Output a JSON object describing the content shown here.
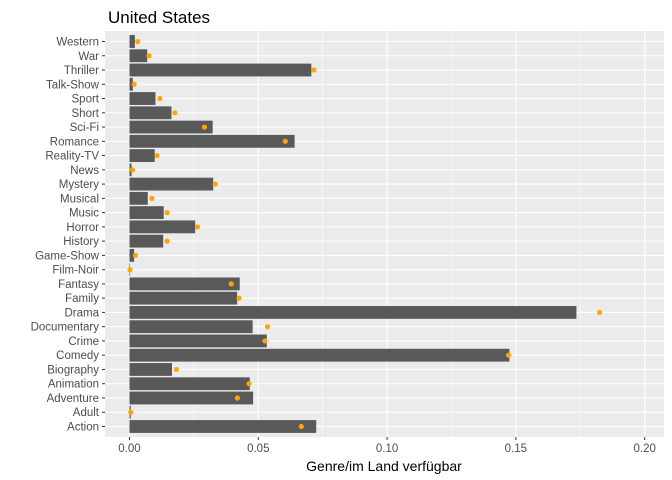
{
  "chart_data": {
    "type": "bar",
    "orientation": "horizontal",
    "title": "United States",
    "xlabel": "Genre/im Land verfügbar",
    "ylabel": "",
    "xlim": [
      -0.0095,
      0.2075
    ],
    "x_ticks": [
      0.0,
      0.05,
      0.1,
      0.15,
      0.2
    ],
    "x_tick_labels": [
      "0.00",
      "0.05",
      "0.10",
      "0.15",
      "0.20"
    ],
    "grid": true,
    "legend": "none",
    "categories": [
      "Action",
      "Adult",
      "Adventure",
      "Animation",
      "Biography",
      "Comedy",
      "Crime",
      "Documentary",
      "Drama",
      "Family",
      "Fantasy",
      "Film-Noir",
      "Game-Show",
      "History",
      "Horror",
      "Music",
      "Musical",
      "Mystery",
      "News",
      "Reality-TV",
      "Romance",
      "Sci-Fi",
      "Short",
      "Sport",
      "Talk-Show",
      "Thriller",
      "War",
      "Western"
    ],
    "series": [
      {
        "mark": "bar",
        "values": [
          0.0725,
          0.0005,
          0.048,
          0.0467,
          0.0165,
          0.1475,
          0.0533,
          0.0478,
          0.1735,
          0.0418,
          0.0428,
          0.0,
          0.0018,
          0.0131,
          0.0255,
          0.0133,
          0.0071,
          0.0325,
          0.0008,
          0.0098,
          0.0641,
          0.0323,
          0.0163,
          0.0101,
          0.0013,
          0.0706,
          0.0069,
          0.0021
        ],
        "color": "#595959"
      },
      {
        "mark": "point",
        "values": [
          0.0667,
          0.0005,
          0.0419,
          0.0464,
          0.0182,
          0.1472,
          0.0526,
          0.0536,
          0.1825,
          0.0425,
          0.0395,
          0.0002,
          0.0023,
          0.0146,
          0.0264,
          0.0146,
          0.0087,
          0.0333,
          0.0012,
          0.0107,
          0.0605,
          0.0291,
          0.0176,
          0.0118,
          0.0018,
          0.0716,
          0.0076,
          0.0032
        ],
        "color": "#ffa500"
      }
    ]
  },
  "colors": {
    "panel_background": "#ebebeb",
    "grid_major": "#ffffff",
    "bar_fill": "#595959",
    "point_fill": "#ffa500",
    "tick_text": "#4d4d4d"
  }
}
